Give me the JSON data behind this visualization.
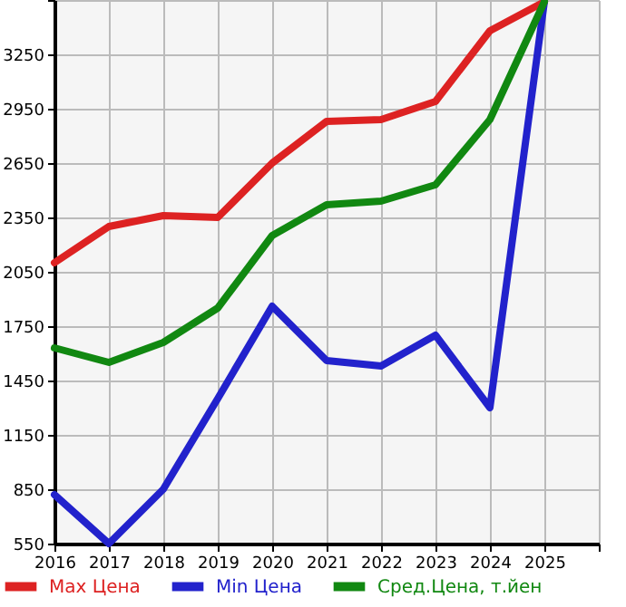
{
  "chart_data": {
    "type": "line",
    "x": [
      2016,
      2017,
      2018,
      2019,
      2020,
      2021,
      2022,
      2023,
      2024,
      2025
    ],
    "series": [
      {
        "name": "Max Цена",
        "color": "#dd2222",
        "values": [
          2100,
          2300,
          2360,
          2350,
          2650,
          2880,
          2890,
          2990,
          3380,
          3540
        ]
      },
      {
        "name": "Min Цена",
        "color": "#2222cc",
        "values": [
          820,
          550,
          850,
          1350,
          1860,
          1560,
          1530,
          1700,
          1300,
          3540
        ]
      },
      {
        "name": "Сред.Цена, т.йен",
        "color": "#118811",
        "values": [
          1630,
          1550,
          1660,
          1850,
          2250,
          2420,
          2440,
          2530,
          2890,
          3540
        ]
      }
    ],
    "xlim": [
      2016,
      2026
    ],
    "xticks": [
      2016,
      2017,
      2018,
      2019,
      2020,
      2021,
      2022,
      2023,
      2024,
      2025,
      {
        "value": 2026,
        "label": null
      }
    ],
    "ylim": [
      550,
      3550
    ],
    "yticks": [
      550,
      850,
      1150,
      1450,
      1750,
      2050,
      2350,
      2650,
      2950,
      3250,
      {
        "value": 3550,
        "label": null
      }
    ],
    "grid": true,
    "legend": "bottom left",
    "marker": "none",
    "line_style": "solid"
  }
}
